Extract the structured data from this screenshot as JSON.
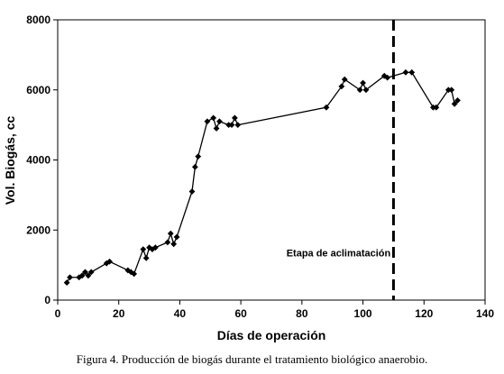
{
  "chart_data": {
    "type": "line",
    "xlabel": "Días de operación",
    "ylabel": "Vol. Biogás, cc",
    "xlim": [
      0,
      140
    ],
    "ylim": [
      0,
      8000
    ],
    "x_ticks": [
      0,
      20,
      40,
      60,
      80,
      100,
      120,
      140
    ],
    "y_ticks": [
      0,
      2000,
      4000,
      6000,
      8000
    ],
    "grid": false,
    "series": [
      {
        "marker": "diamond",
        "points": [
          [
            3,
            500
          ],
          [
            4,
            650
          ],
          [
            7,
            650
          ],
          [
            8,
            700
          ],
          [
            9,
            800
          ],
          [
            10,
            700
          ],
          [
            11,
            800
          ],
          [
            16,
            1050
          ],
          [
            17,
            1100
          ],
          [
            23,
            850
          ],
          [
            24,
            800
          ],
          [
            25,
            750
          ],
          [
            28,
            1450
          ],
          [
            29,
            1200
          ],
          [
            30,
            1500
          ],
          [
            31,
            1450
          ],
          [
            32,
            1500
          ],
          [
            36,
            1650
          ],
          [
            37,
            1900
          ],
          [
            38,
            1600
          ],
          [
            39,
            1800
          ],
          [
            44,
            3100
          ],
          [
            45,
            3800
          ],
          [
            46,
            4100
          ],
          [
            49,
            5100
          ],
          [
            51,
            5200
          ],
          [
            52,
            4900
          ],
          [
            53,
            5100
          ],
          [
            56,
            5000
          ],
          [
            57,
            5000
          ],
          [
            58,
            5200
          ],
          [
            59,
            5000
          ],
          [
            88,
            5500
          ],
          [
            93,
            6100
          ],
          [
            94,
            6300
          ],
          [
            99,
            6000
          ],
          [
            100,
            6200
          ],
          [
            101,
            6000
          ],
          [
            107,
            6400
          ],
          [
            108,
            6350
          ],
          [
            114,
            6500
          ],
          [
            116,
            6500
          ],
          [
            123,
            5500
          ],
          [
            124,
            5500
          ],
          [
            128,
            6000
          ],
          [
            129,
            6000
          ],
          [
            130,
            5600
          ],
          [
            131,
            5700
          ]
        ]
      }
    ],
    "reference_line": {
      "x": 110,
      "style": "dashed"
    },
    "annotation": {
      "text": "Etapa de aclimatación",
      "x": 92,
      "y": 1250
    }
  },
  "caption": "Figura 4. Producción de biogás durante el tratamiento biológico anaerobio."
}
